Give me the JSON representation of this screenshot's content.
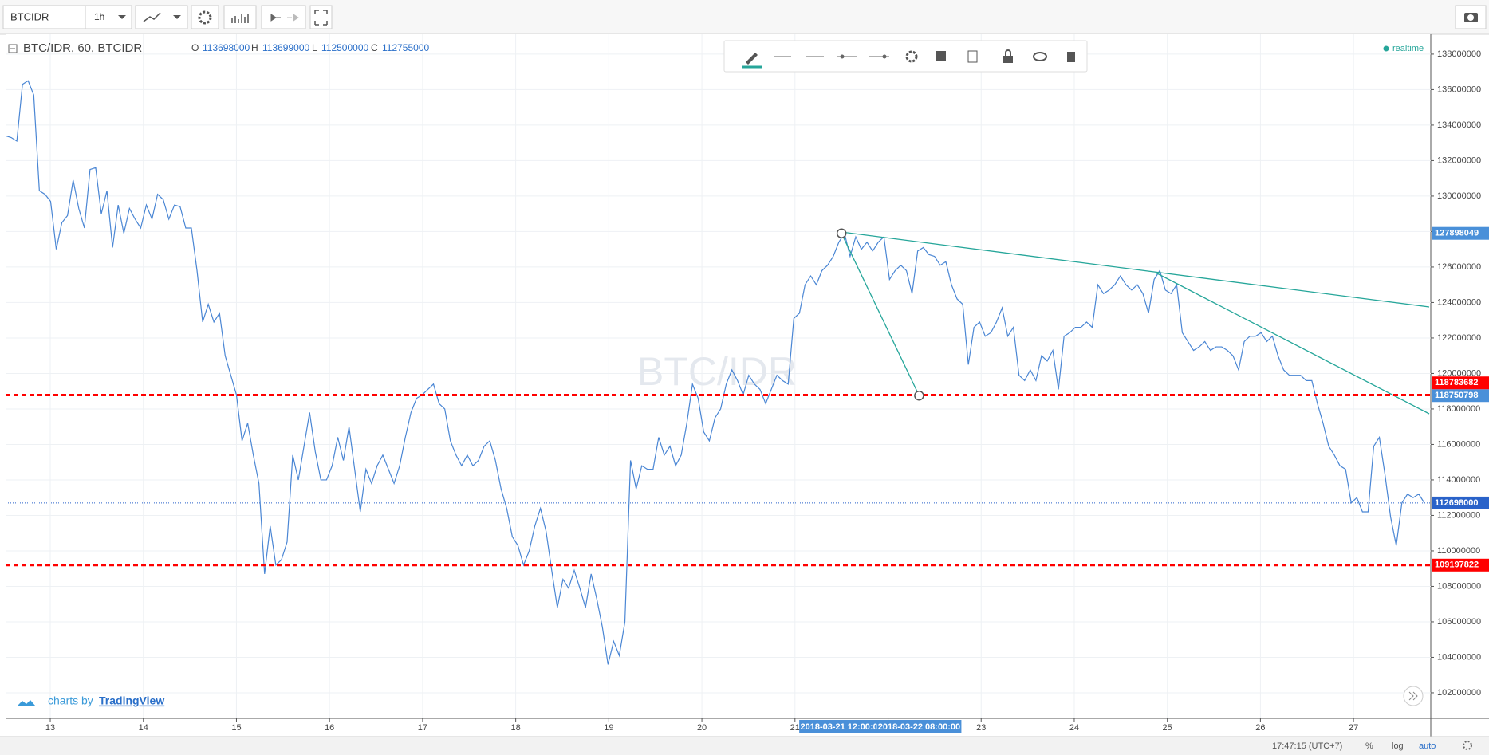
{
  "toolbar": {
    "symbol": "BTCIDR",
    "interval": "1h"
  },
  "legend": {
    "title": "BTC/IDR, 60, BTCIDR",
    "open_label": "O",
    "open": 113698000,
    "high_label": "H",
    "high": 113699000,
    "low_label": "L",
    "low": 112500000,
    "close_label": "C",
    "close": 112755000
  },
  "status": "realtime",
  "watermark": "BTC/IDR",
  "branding": {
    "prefix": "charts by",
    "name": "TradingView"
  },
  "status_bar": {
    "time": "17:47:15 (UTC+7)",
    "percent": "%",
    "log": "log",
    "auto": "auto"
  },
  "chart_data": {
    "type": "line",
    "color": "#4a86d4",
    "values": [
      133400000,
      133300000,
      133100000,
      136300000,
      136500000,
      135700000,
      130300000,
      130100000,
      129700000,
      127000000,
      128500000,
      128900000,
      130900000,
      129300000,
      128200000,
      131500000,
      131600000,
      129000000,
      130300000,
      127100000,
      129500000,
      127900000,
      129300000,
      128700000,
      128200000,
      129500000,
      128700000,
      130100000,
      129800000,
      128700000,
      129500000,
      129400000,
      128200000,
      128200000,
      125800000,
      122900000,
      123900000,
      122900000,
      123400000,
      121000000,
      119900000,
      118800000,
      116200000,
      117200000,
      115400000,
      113800000,
      108700000,
      111400000,
      109200000,
      109500000,
      110500000,
      115400000,
      114000000,
      115900000,
      117800000,
      115600000,
      114000000,
      114000000,
      114800000,
      116400000,
      115100000,
      117000000,
      114600000,
      112200000,
      114600000,
      113800000,
      114800000,
      115400000,
      114600000,
      113800000,
      114800000,
      116400000,
      117800000,
      118600000,
      118800000,
      119100000,
      119400000,
      118300000,
      118000000,
      116200000,
      115400000,
      114800000,
      115400000,
      114800000,
      115100000,
      115900000,
      116200000,
      115100000,
      113500000,
      112400000,
      110800000,
      110300000,
      109200000,
      110000000,
      111400000,
      112400000,
      111100000,
      108900000,
      106800000,
      108400000,
      107900000,
      108900000,
      107900000,
      106800000,
      108700000,
      107300000,
      105700000,
      103600000,
      104900000,
      104100000,
      106000000,
      115100000,
      113500000,
      114800000,
      114600000,
      114600000,
      116400000,
      115400000,
      115900000,
      114800000,
      115400000,
      117200000,
      119400000,
      118600000,
      116700000,
      116200000,
      117500000,
      118000000,
      119400000,
      120200000,
      119600000,
      118800000,
      119900000,
      119400000,
      119100000,
      118300000,
      119100000,
      119900000,
      119600000,
      119400000,
      123100000,
      123400000,
      125000000,
      125500000,
      125000000,
      125800000,
      126100000,
      126600000,
      127400000,
      127900000,
      126600000,
      127700000,
      127000000,
      127400000,
      126900000,
      127400000,
      127700000,
      125300000,
      125800000,
      126100000,
      125800000,
      124500000,
      126900000,
      127100000,
      126700000,
      126600000,
      126100000,
      126300000,
      125000000,
      124200000,
      123900000,
      120500000,
      122600000,
      122900000,
      122100000,
      122300000,
      122900000,
      123700000,
      122100000,
      122600000,
      119900000,
      119600000,
      120200000,
      119600000,
      121000000,
      120700000,
      121300000,
      119100000,
      122100000,
      122300000,
      122600000,
      122600000,
      122900000,
      122600000,
      125000000,
      124500000,
      124700000,
      125000000,
      125500000,
      125000000,
      124700000,
      125000000,
      124500000,
      123400000,
      125300000,
      125800000,
      124700000,
      124500000,
      125000000,
      122300000,
      121800000,
      121300000,
      121500000,
      121800000,
      121300000,
      121500000,
      121500000,
      121300000,
      121000000,
      120200000,
      121800000,
      122100000,
      122100000,
      122300000,
      121800000,
      122100000,
      121000000,
      120200000,
      119900000,
      119900000,
      119900000,
      119600000,
      119600000,
      118300000,
      117200000,
      115900000,
      115400000,
      114800000,
      114600000,
      112700000,
      113000000,
      112200000,
      112200000,
      115900000,
      116400000,
      114300000,
      111900000,
      110300000,
      112700000,
      113200000,
      113000000,
      113200000,
      112700000
    ],
    "xlim": [
      12.52,
      27.83
    ],
    "xticks": [
      13,
      14,
      15,
      16,
      17,
      18,
      19,
      20,
      21,
      22,
      23,
      24,
      25,
      26,
      27
    ],
    "ylim": [
      100560000,
      139120000
    ],
    "yticks": [
      102000000,
      104000000,
      106000000,
      108000000,
      110000000,
      112000000,
      114000000,
      116000000,
      118000000,
      120000000,
      122000000,
      124000000,
      126000000,
      128000000,
      130000000,
      132000000,
      134000000,
      136000000,
      138000000
    ],
    "grid": true,
    "levels": [
      {
        "value": 118783682,
        "color": "#ff0000",
        "style": "dashed"
      },
      {
        "value": 109197822,
        "color": "#ff0000",
        "style": "dashed"
      },
      {
        "value": 112698000,
        "color": "#2962c9",
        "style": "dotted"
      }
    ],
    "trendline": {
      "color": "#26a69a",
      "start": {
        "time": "2018-03-21 12:00:00",
        "value": 127898049
      },
      "end": {
        "time": "2018-03-22 08:00:00",
        "value": 118750798
      }
    }
  }
}
